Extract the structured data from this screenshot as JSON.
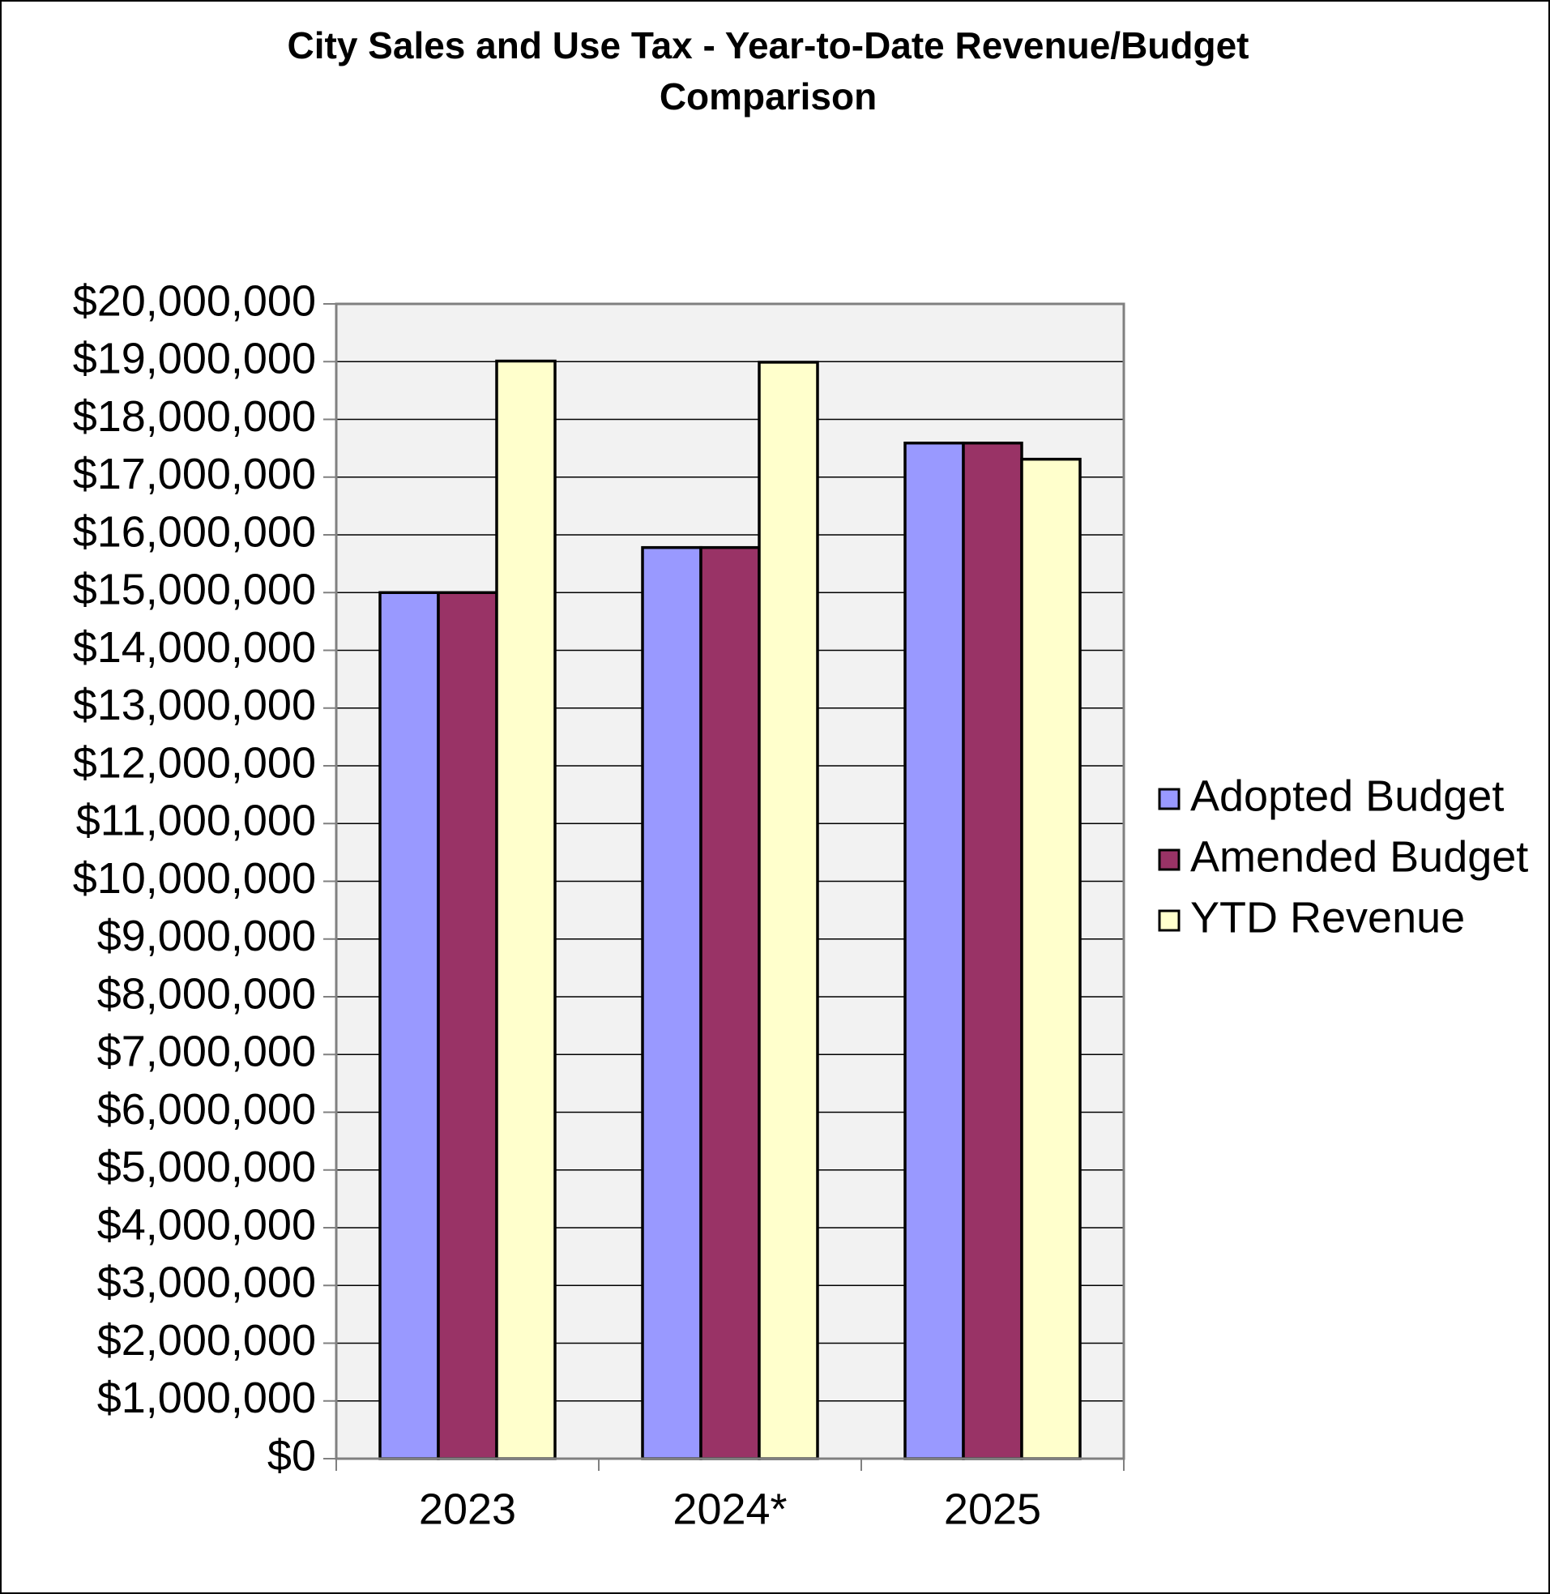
{
  "chart_data": {
    "type": "bar",
    "title": "City Sales and Use Tax - Year-to-Date Revenue/Budget Comparison",
    "categories": [
      "2023",
      "2024*",
      "2025"
    ],
    "series": [
      {
        "name": "Adopted Budget",
        "color": "#9999ff",
        "values": [
          15000000,
          15780000,
          17590000
        ]
      },
      {
        "name": "Amended Budget",
        "color": "#993366",
        "values": [
          15000000,
          15780000,
          17590000
        ]
      },
      {
        "name": "YTD Revenue",
        "color": "#ffffcc",
        "values": [
          19010000,
          18990000,
          17310000
        ]
      }
    ],
    "ylim": [
      0,
      20000000
    ],
    "yticks": [
      {
        "value": 0,
        "label": "$0"
      },
      {
        "value": 1000000,
        "label": "$1,000,000"
      },
      {
        "value": 2000000,
        "label": "$2,000,000"
      },
      {
        "value": 3000000,
        "label": "$3,000,000"
      },
      {
        "value": 4000000,
        "label": "$4,000,000"
      },
      {
        "value": 5000000,
        "label": "$5,000,000"
      },
      {
        "value": 6000000,
        "label": "$6,000,000"
      },
      {
        "value": 7000000,
        "label": "$7,000,000"
      },
      {
        "value": 8000000,
        "label": "$8,000,000"
      },
      {
        "value": 9000000,
        "label": "$9,000,000"
      },
      {
        "value": 10000000,
        "label": "$10,000,000"
      },
      {
        "value": 11000000,
        "label": "$11,000,000"
      },
      {
        "value": 12000000,
        "label": "$12,000,000"
      },
      {
        "value": 13000000,
        "label": "$13,000,000"
      },
      {
        "value": 14000000,
        "label": "$14,000,000"
      },
      {
        "value": 15000000,
        "label": "$15,000,000"
      },
      {
        "value": 16000000,
        "label": "$16,000,000"
      },
      {
        "value": 17000000,
        "label": "$17,000,000"
      },
      {
        "value": 18000000,
        "label": "$18,000,000"
      },
      {
        "value": 19000000,
        "label": "$19,000,000"
      },
      {
        "value": 20000000,
        "label": "$20,000,000"
      }
    ],
    "grid": true,
    "legend": "right"
  }
}
